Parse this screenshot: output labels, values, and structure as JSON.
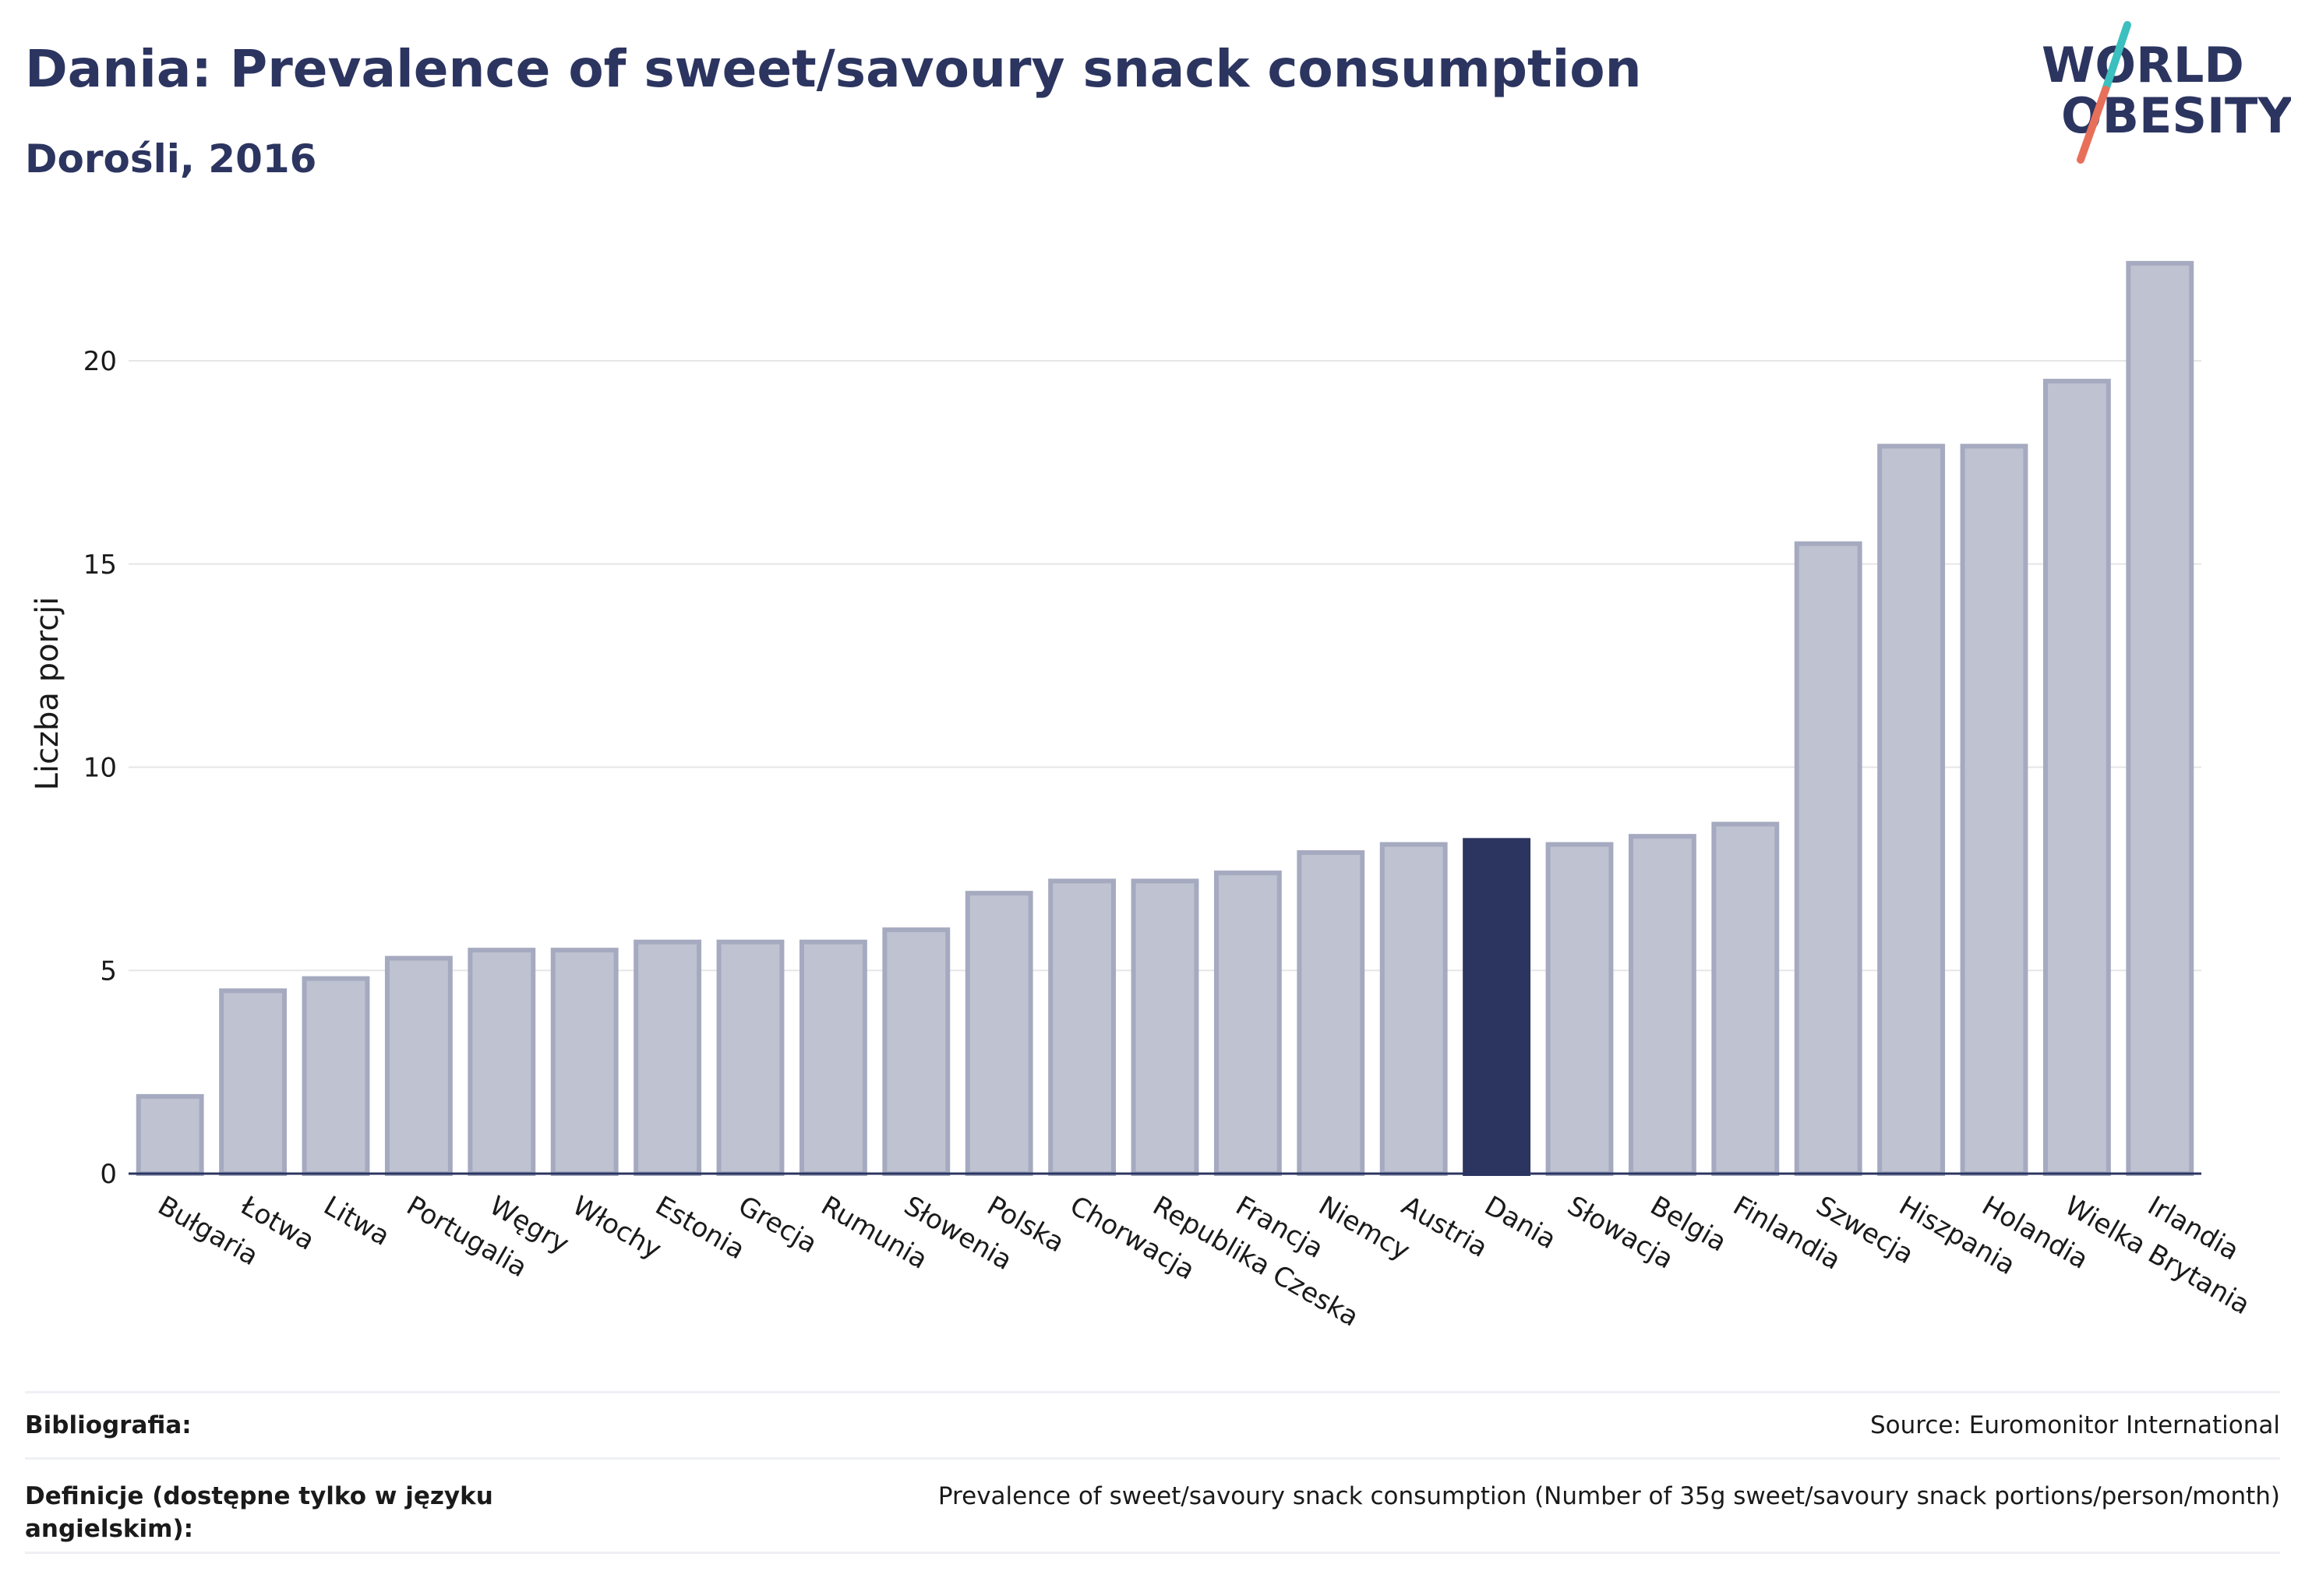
{
  "header": {
    "title": "Dania: Prevalence of sweet/savoury snack consumption",
    "subtitle": "Dorośli, 2016"
  },
  "logo": {
    "line1": "WORLD",
    "line2": "OBESITY",
    "colors": {
      "text": "#2c3560",
      "slash_top": "#3bbfbf",
      "slash_bottom": "#e8705a"
    }
  },
  "colors": {
    "bar": "#bfc2d0",
    "bar_border": "#a6aac0",
    "highlight": "#2c3560",
    "grid": "#e6e6e6",
    "axis": "#2c3560"
  },
  "chart_data": {
    "type": "bar",
    "ylabel": "Liczba porcji",
    "ylim": [
      0,
      23
    ],
    "yticks": [
      0,
      5,
      10,
      15,
      20
    ],
    "grid": true,
    "highlight": "Dania",
    "categories": [
      "Bułgaria",
      "Łotwa",
      "Litwa",
      "Portugalia",
      "Węgry",
      "Włochy",
      "Estonia",
      "Grecja",
      "Rumunia",
      "Słowenia",
      "Polska",
      "Chorwacja",
      "Republika Czeska",
      "Francja",
      "Niemcy",
      "Austria",
      "Dania",
      "Słowacja",
      "Belgia",
      "Finlandia",
      "Szwecja",
      "Hiszpania",
      "Holandia",
      "Wielka Brytania",
      "Irlandia"
    ],
    "values": [
      1.9,
      4.5,
      4.8,
      5.3,
      5.5,
      5.5,
      5.7,
      5.7,
      5.7,
      6.0,
      6.9,
      7.2,
      7.2,
      7.4,
      7.9,
      8.1,
      8.2,
      8.1,
      8.3,
      8.6,
      15.5,
      17.9,
      17.9,
      19.5,
      22.4
    ]
  },
  "footer": {
    "bibliography_label": "Bibliografia:",
    "bibliography_value": "Source: Euromonitor International",
    "definitions_label": "Definicje (dostępne tylko w języku angielskim):",
    "definitions_value": "Prevalence of sweet/savoury snack consumption (Number of 35g sweet/savoury snack portions/person/month)"
  }
}
